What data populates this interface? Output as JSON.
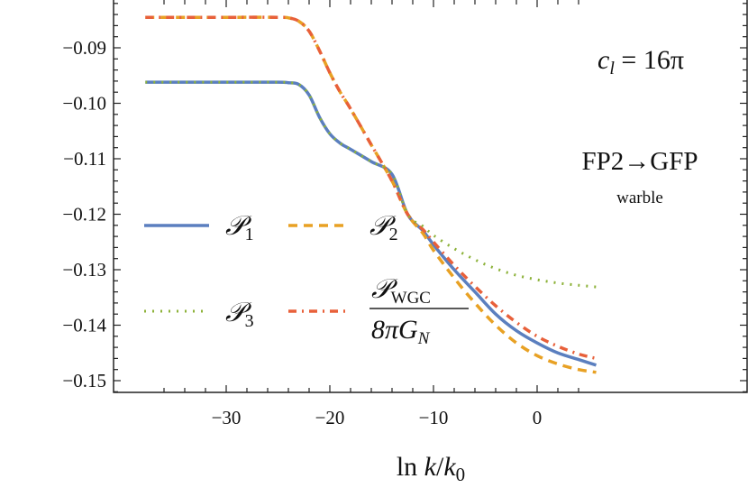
{
  "chart_data": {
    "type": "line",
    "title": "",
    "xlabel": "ln k/k0",
    "ylabel": "",
    "xlim": [
      -37.8,
      5.7
    ],
    "ylim": [
      -0.152,
      -0.0815
    ],
    "grid": false,
    "x_ticks": [
      -30,
      -20,
      -10,
      0
    ],
    "x_tick_labels": [
      "−30",
      "−20",
      "−10",
      "0"
    ],
    "y_ticks": [
      -0.09,
      -0.1,
      -0.11,
      -0.12,
      -0.13,
      -0.14,
      -0.15
    ],
    "y_tick_labels": [
      "−0.09",
      "−0.10",
      "−0.11",
      "−0.12",
      "−0.13",
      "−0.14",
      "−0.15"
    ],
    "legend_position": "lower-left (inside)",
    "annotations": [
      {
        "text": "c_l = 16π",
        "position": "top-right"
      },
      {
        "text": "FP2→GFP",
        "position": "right"
      },
      {
        "text": "warble",
        "position": "right, below FP2→GFP"
      }
    ],
    "series": [
      {
        "name": "P1",
        "legend_label": "𝒫",
        "legend_sub": "1",
        "color": "#5b7fbf",
        "style": "solid",
        "x": [
          -37.8,
          -30,
          -25,
          -24,
          -23,
          -22,
          -21,
          -20,
          -19,
          -18,
          -16,
          -14,
          -12.5,
          -11,
          -10,
          -8,
          -6,
          -4,
          -2,
          0,
          2,
          4,
          5.7
        ],
        "y": [
          -0.0962,
          -0.0962,
          -0.0962,
          -0.0963,
          -0.0966,
          -0.0985,
          -0.1025,
          -0.1055,
          -0.1072,
          -0.1083,
          -0.1105,
          -0.1128,
          -0.12,
          -0.123,
          -0.1255,
          -0.13,
          -0.134,
          -0.138,
          -0.141,
          -0.1432,
          -0.145,
          -0.1462,
          -0.1472
        ]
      },
      {
        "name": "P2",
        "legend_label": "𝒫",
        "legend_sub": "2",
        "color": "#e8a124",
        "style": "dashed",
        "x": [
          -37.8,
          -30,
          -25,
          -24,
          -23,
          -22,
          -21,
          -20,
          -19,
          -18,
          -16,
          -14,
          -12.5,
          -11,
          -10,
          -8,
          -6,
          -4,
          -2,
          0,
          2,
          4,
          5.7
        ],
        "y": [
          -0.0845,
          -0.0845,
          -0.0845,
          -0.0846,
          -0.0852,
          -0.087,
          -0.0905,
          -0.0945,
          -0.098,
          -0.101,
          -0.1075,
          -0.114,
          -0.12,
          -0.1235,
          -0.1265,
          -0.1315,
          -0.136,
          -0.14,
          -0.1432,
          -0.1455,
          -0.147,
          -0.148,
          -0.1485
        ]
      },
      {
        "name": "P3",
        "legend_label": "𝒫",
        "legend_sub": "3",
        "color": "#8db23a",
        "style": "dotted",
        "x": [
          -37.8,
          -30,
          -25,
          -24,
          -23,
          -22,
          -21,
          -20,
          -19,
          -18,
          -16,
          -14,
          -12.5,
          -11,
          -10,
          -8,
          -6,
          -4,
          -2,
          0,
          2,
          4,
          5.7
        ],
        "y": [
          -0.0962,
          -0.0962,
          -0.0962,
          -0.0963,
          -0.0966,
          -0.0985,
          -0.1025,
          -0.1055,
          -0.1072,
          -0.1083,
          -0.1105,
          -0.1128,
          -0.12,
          -0.1222,
          -0.1238,
          -0.1262,
          -0.1282,
          -0.1298,
          -0.131,
          -0.1318,
          -0.1324,
          -0.1328,
          -0.1331
        ]
      },
      {
        "name": "PWGC/(8πG_N)",
        "legend_label_num": "𝒫",
        "legend_label_num_sub": "WGC",
        "legend_label_den": "8πG",
        "legend_label_den_sub": "N",
        "color": "#e8603a",
        "style": "dashdot",
        "x": [
          -37.8,
          -30,
          -25,
          -24,
          -23,
          -22,
          -21,
          -20,
          -19,
          -18,
          -16,
          -14,
          -12.5,
          -11,
          -10,
          -8,
          -6,
          -4,
          -2,
          0,
          2,
          4,
          5.7
        ],
        "y": [
          -0.0845,
          -0.0845,
          -0.0845,
          -0.0846,
          -0.0852,
          -0.087,
          -0.0905,
          -0.0945,
          -0.098,
          -0.101,
          -0.1075,
          -0.114,
          -0.12,
          -0.1228,
          -0.125,
          -0.1292,
          -0.133,
          -0.1365,
          -0.1395,
          -0.142,
          -0.1438,
          -0.1452,
          -0.146
        ]
      }
    ]
  },
  "labels": {
    "xlabel_ln": "ln",
    "xlabel_k": "k",
    "xlabel_slash": "/",
    "xlabel_k0": "k",
    "xlabel_k0_sub": "0",
    "annot_cl_c": "c",
    "annot_cl_sub": "l",
    "annot_cl_rest": " = 16π",
    "annot_transition": "FP2→GFP",
    "annot_model": "warble"
  }
}
